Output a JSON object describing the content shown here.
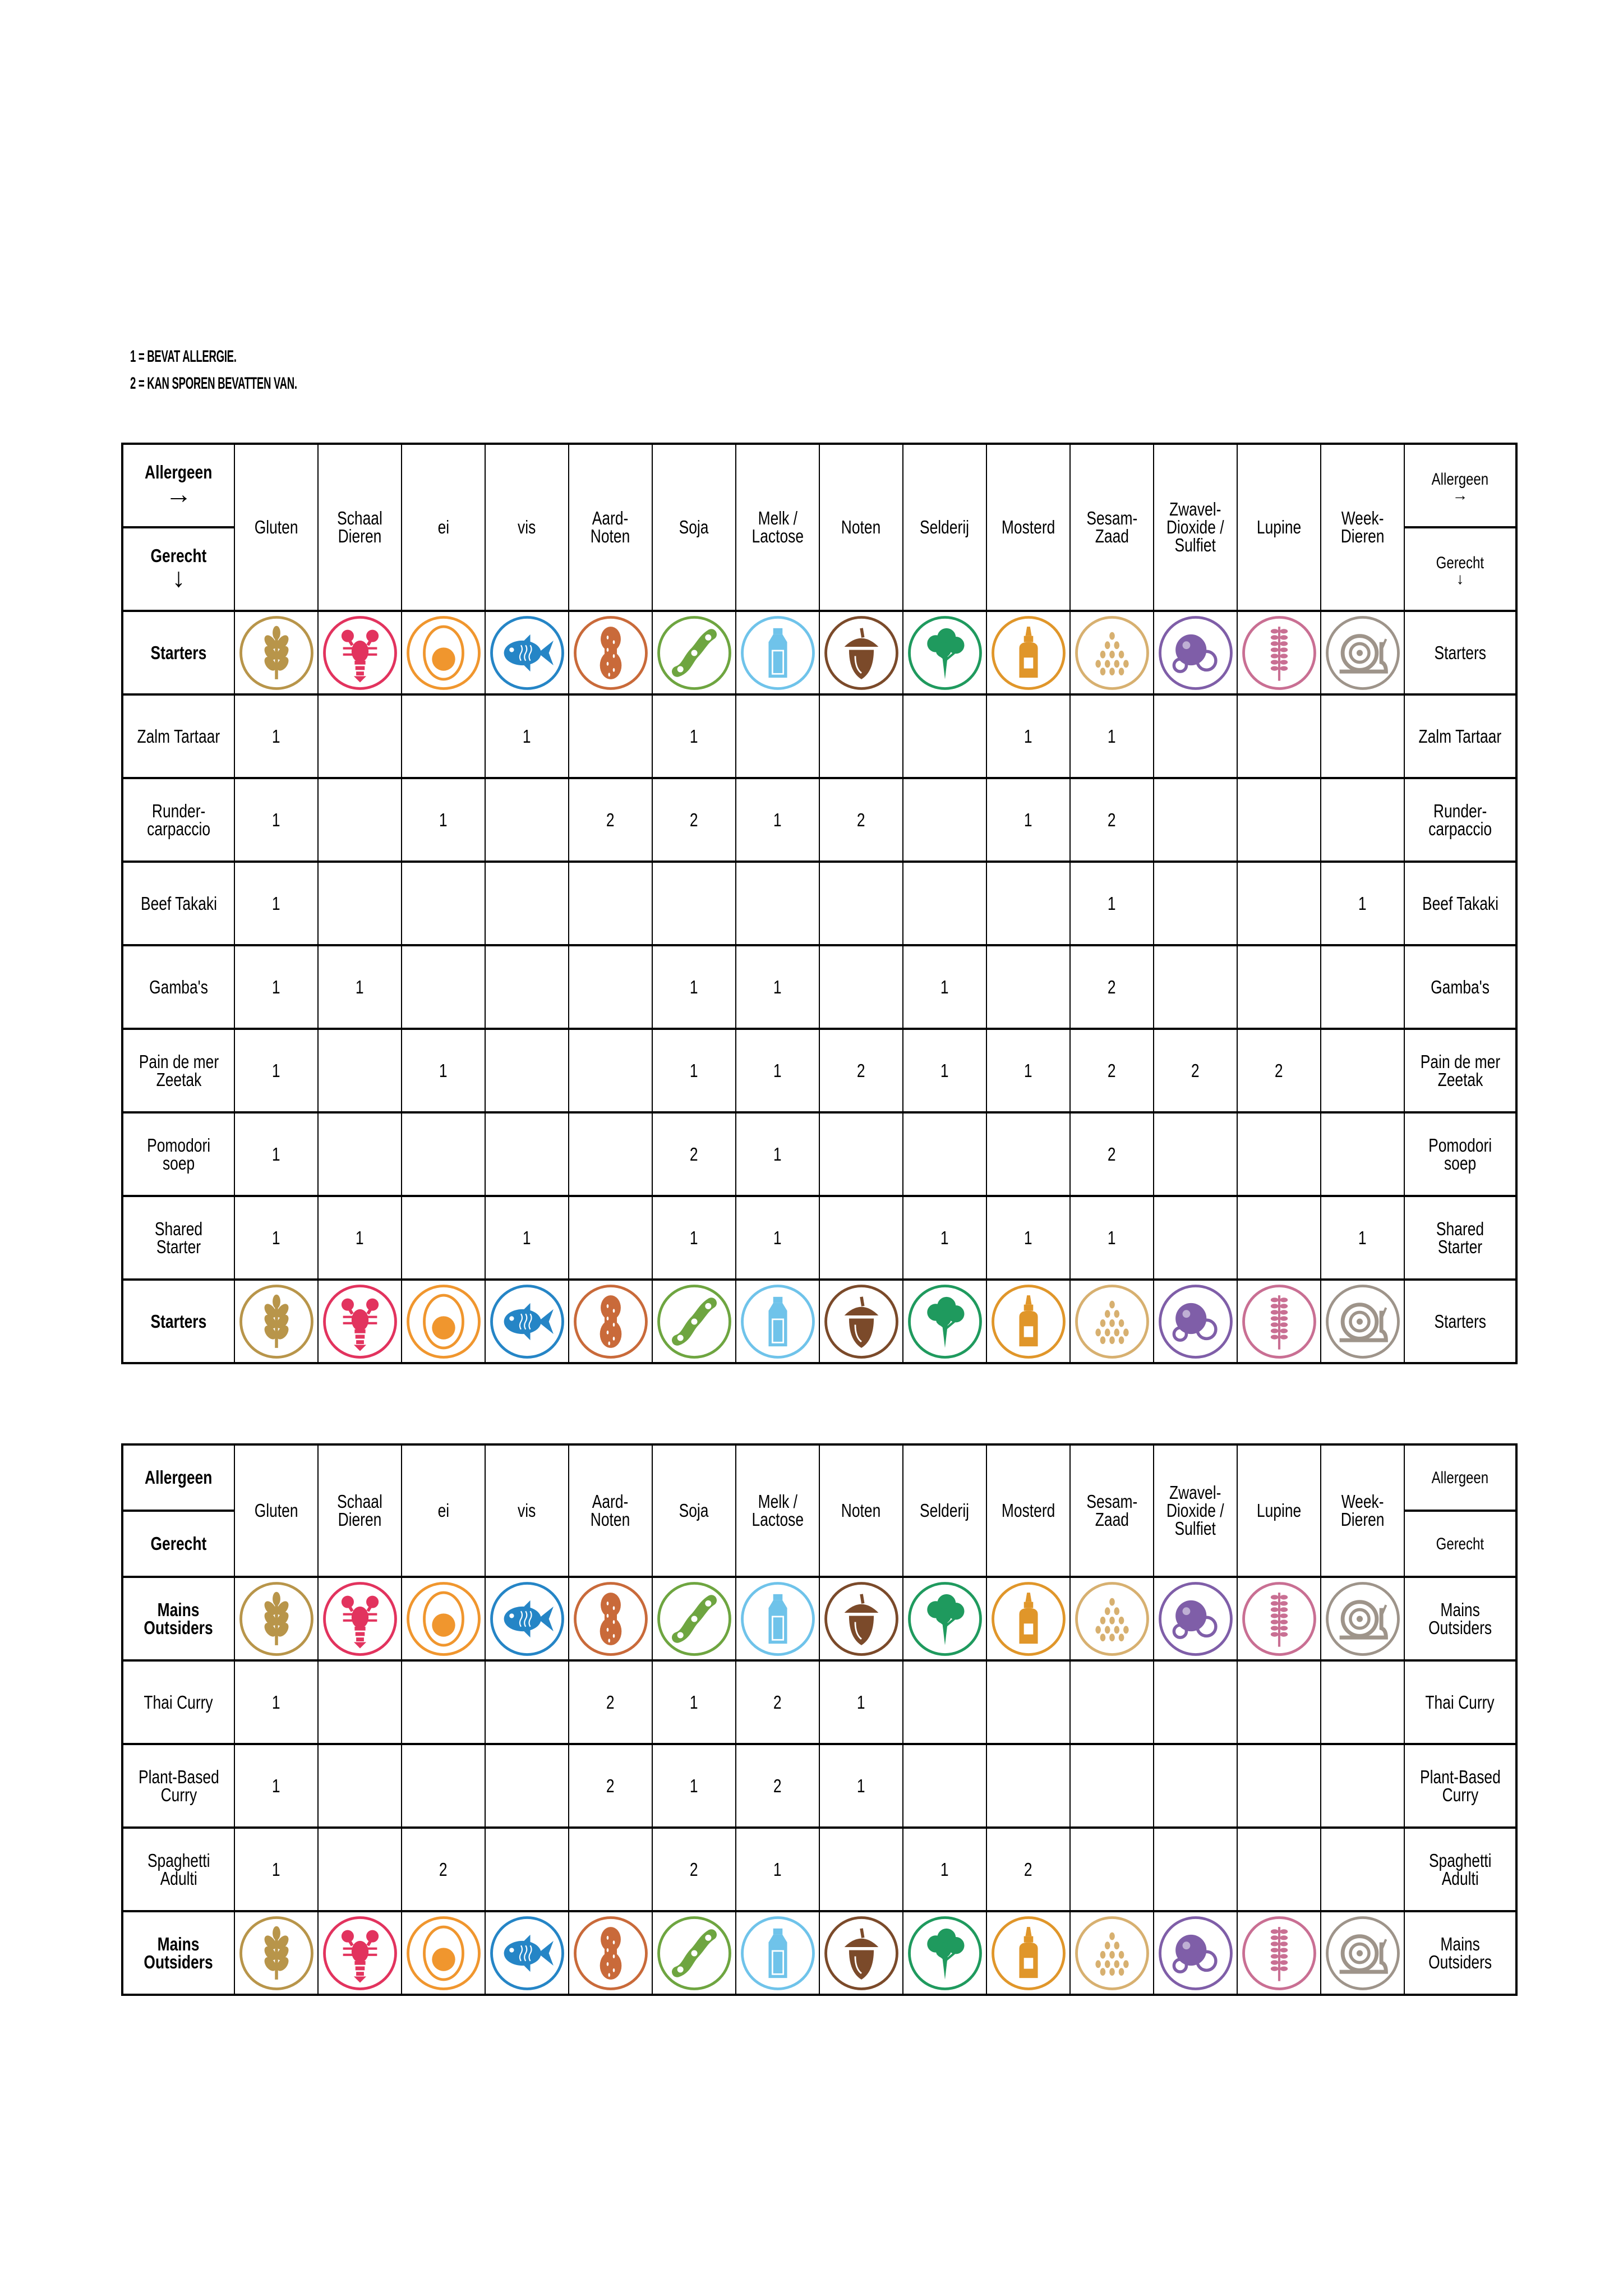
{
  "legend": {
    "line1": "1 = BEVAT ALLERGIE.",
    "line2": "2 = KAN SPOREN BEVATTEN VAN."
  },
  "allergens": [
    {
      "name": "Gluten",
      "icon": "wheat-icon",
      "color": "#b8954a"
    },
    {
      "name": "Schaal\nDieren",
      "icon": "lobster-icon",
      "color": "#e2335e"
    },
    {
      "name": "ei",
      "icon": "egg-icon",
      "color": "#f0962e"
    },
    {
      "name": "vis",
      "icon": "fish-icon",
      "color": "#2585c6"
    },
    {
      "name": "Aard-\nNoten",
      "icon": "peanut-icon",
      "color": "#c96a3a"
    },
    {
      "name": "Soja",
      "icon": "soy-icon",
      "color": "#6ea540"
    },
    {
      "name": "Melk /\nLactose",
      "icon": "milk-bottle-icon",
      "color": "#6fc3ea"
    },
    {
      "name": "Noten",
      "icon": "acorn-icon",
      "color": "#7b4a2a"
    },
    {
      "name": "Selderij",
      "icon": "celery-icon",
      "color": "#1f9a5e"
    },
    {
      "name": "Mosterd",
      "icon": "mustard-icon",
      "color": "#e0962a"
    },
    {
      "name": "Sesam-\nZaad",
      "icon": "sesame-icon",
      "color": "#d7b070"
    },
    {
      "name": "Zwavel-\nDioxide /\nSulfiet",
      "icon": "sulfite-icon",
      "color": "#7f5ea8"
    },
    {
      "name": "Lupine",
      "icon": "lupine-icon",
      "color": "#c96f93"
    },
    {
      "name": "Week-\nDieren",
      "icon": "snail-icon",
      "color": "#9e948a"
    }
  ],
  "tables": [
    {
      "corner_top": "Allergeen",
      "corner_top_arrow": "→",
      "corner_bottom": "Gerecht",
      "corner_bottom_arrow": "↓",
      "right_top": "Allergeen",
      "right_top_arrow": "→",
      "right_bottom": "Gerecht",
      "right_bottom_arrow": "↓",
      "section": "Starters",
      "dishes": [
        {
          "name": "Zalm Tartaar",
          "values": [
            "1",
            "",
            "",
            "1",
            "",
            "1",
            "",
            "",
            "",
            "1",
            "1",
            "",
            "",
            ""
          ]
        },
        {
          "name": "Runder-\ncarpaccio",
          "values": [
            "1",
            "",
            "1",
            "",
            "2",
            "2",
            "1",
            "2",
            "",
            "1",
            "2",
            "",
            "",
            ""
          ]
        },
        {
          "name": "Beef Takaki",
          "values": [
            "1",
            "",
            "",
            "",
            "",
            "",
            "",
            "",
            "",
            "",
            "1",
            "",
            "",
            "1"
          ]
        },
        {
          "name": "Gamba's",
          "values": [
            "1",
            "1",
            "",
            "",
            "",
            "1",
            "1",
            "",
            "1",
            "",
            "2",
            "",
            "",
            ""
          ]
        },
        {
          "name": "Pain de mer\nZeetak",
          "values": [
            "1",
            "",
            "1",
            "",
            "",
            "1",
            "1",
            "2",
            "1",
            "1",
            "2",
            "2",
            "2",
            ""
          ]
        },
        {
          "name": "Pomodori\nsoep",
          "values": [
            "1",
            "",
            "",
            "",
            "",
            "2",
            "1",
            "",
            "",
            "",
            "2",
            "",
            "",
            ""
          ]
        },
        {
          "name": "Shared Starter",
          "values": [
            "1",
            "1",
            "",
            "1",
            "",
            "1",
            "1",
            "",
            "1",
            "1",
            "1",
            "",
            "",
            "1"
          ]
        }
      ]
    },
    {
      "corner_top": "Allergeen",
      "corner_bottom": "Gerecht",
      "right_top": "Allergeen",
      "right_bottom": "Gerecht",
      "section": "Mains\nOutsiders",
      "dishes": [
        {
          "name": "Thai Curry",
          "values": [
            "1",
            "",
            "",
            "",
            "2",
            "1",
            "2",
            "1",
            "",
            "",
            "",
            "",
            "",
            ""
          ]
        },
        {
          "name": "Plant-Based\nCurry",
          "values": [
            "1",
            "",
            "",
            "",
            "2",
            "1",
            "2",
            "1",
            "",
            "",
            "",
            "",
            "",
            ""
          ]
        },
        {
          "name": "Spaghetti\nAdulti",
          "values": [
            "1",
            "",
            "2",
            "",
            "",
            "2",
            "1",
            "",
            "1",
            "2",
            "",
            "",
            "",
            ""
          ]
        }
      ]
    }
  ]
}
